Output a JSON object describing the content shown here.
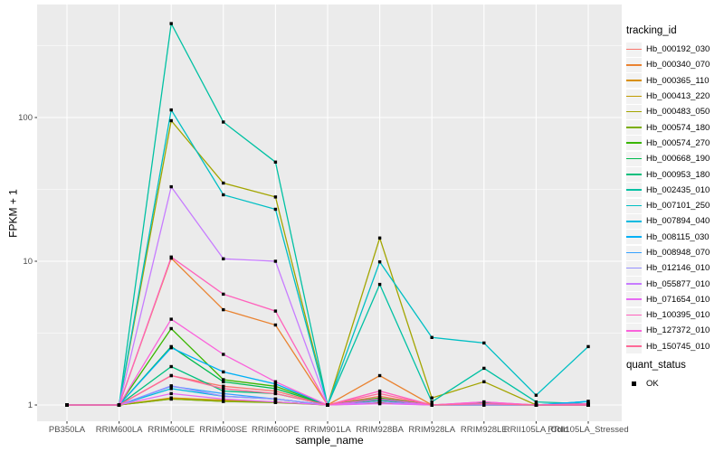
{
  "chart_data": {
    "type": "line",
    "title": "",
    "xlabel": "sample_name",
    "ylabel": "FPKM + 1",
    "y_scale": "log10",
    "y_tick_labels": [
      "1",
      "10",
      "100"
    ],
    "y_tick_values": [
      1,
      10,
      100
    ],
    "y_minor_values": [
      3.162,
      31.62,
      316.2
    ],
    "ylim_log": [
      -0.11,
      2.79
    ],
    "grid": "on",
    "legend_position": "right",
    "panel_bg": "#EBEBEB",
    "grid_color": "#FFFFFF",
    "tick_label_color": "#4D4D4D",
    "point_color": "#000000",
    "point_shape": "black-square",
    "x_categories": [
      "PB350LA",
      "RRIM600LA",
      "RRIM600LE",
      "RRIM600SE",
      "RRIM600PE",
      "RRIM901LA",
      "RRIM928BA",
      "RRIM928LA",
      "RRIM928LE",
      "RRII105LA_Cold",
      "RRII105LA_Stressed"
    ],
    "series": [
      {
        "name": "Hb_000192_030",
        "color": "#F8766D",
        "values": [
          1,
          1,
          1.6,
          1.35,
          1.25,
          1,
          1.15,
          1,
          1.03,
          1,
          1
        ]
      },
      {
        "name": "Hb_000340_070",
        "color": "#EA8331",
        "values": [
          1,
          1,
          10.5,
          4.6,
          3.6,
          1,
          1.6,
          1,
          1.03,
          1,
          1
        ]
      },
      {
        "name": "Hb_000365_110",
        "color": "#D89000",
        "values": [
          1,
          1,
          1.12,
          1.08,
          1.05,
          1,
          1.05,
          1,
          1,
          1,
          1
        ]
      },
      {
        "name": "Hb_000413_220",
        "color": "#C09B00",
        "values": [
          1,
          1,
          1.1,
          1.06,
          1.05,
          1,
          1.03,
          1,
          1.02,
          1,
          1
        ]
      },
      {
        "name": "Hb_000483_050",
        "color": "#A3A500",
        "values": [
          1,
          1,
          95,
          35,
          28,
          1,
          14.5,
          1.12,
          1.45,
          1,
          1
        ]
      },
      {
        "name": "Hb_000574_180",
        "color": "#7CAE00",
        "values": [
          1,
          1,
          1.1,
          1.06,
          1.04,
          1,
          1.05,
          1,
          1,
          1,
          1
        ]
      },
      {
        "name": "Hb_000574_270",
        "color": "#39B600",
        "values": [
          1,
          1,
          3.4,
          1.5,
          1.35,
          1,
          1.12,
          1,
          1.04,
          1,
          1
        ]
      },
      {
        "name": "Hb_000668_190",
        "color": "#00BB4E",
        "values": [
          1,
          1,
          2.55,
          1.45,
          1.3,
          1,
          1.1,
          1,
          1.03,
          1,
          1
        ]
      },
      {
        "name": "Hb_000953_180",
        "color": "#00BF7D",
        "values": [
          1,
          1,
          1.85,
          1.25,
          1.2,
          1,
          1.08,
          1,
          1.02,
          1,
          1
        ]
      },
      {
        "name": "Hb_002435_010",
        "color": "#00C1A3",
        "values": [
          1,
          1,
          450,
          93,
          49,
          1,
          6.9,
          1.05,
          1.8,
          1.05,
          1.02
        ]
      },
      {
        "name": "Hb_007101_250",
        "color": "#00BFC4",
        "values": [
          1,
          1,
          113,
          29,
          23,
          1,
          9.9,
          2.95,
          2.7,
          1.17,
          2.55
        ]
      },
      {
        "name": "Hb_007894_040",
        "color": "#00BAE0",
        "values": [
          1,
          1,
          1.3,
          1.15,
          1.1,
          1,
          1.05,
          1,
          1.02,
          1,
          1.06
        ]
      },
      {
        "name": "Hb_008115_030",
        "color": "#00B0F6",
        "values": [
          1,
          1,
          2.5,
          1.7,
          1.4,
          1,
          1.1,
          1,
          1.02,
          1,
          1.06
        ]
      },
      {
        "name": "Hb_008948_070",
        "color": "#35A2FF",
        "values": [
          1,
          1,
          1.35,
          1.2,
          1.1,
          1,
          1.05,
          1,
          1,
          1,
          1.02
        ]
      },
      {
        "name": "Hb_012146_010",
        "color": "#9590FF",
        "values": [
          1,
          1,
          1.36,
          1.15,
          1.1,
          1,
          1.05,
          1,
          1,
          1,
          1
        ]
      },
      {
        "name": "Hb_055877_010",
        "color": "#C77CFF",
        "values": [
          1,
          1,
          33,
          10.4,
          10,
          1,
          1.05,
          1,
          1.02,
          1,
          1
        ]
      },
      {
        "name": "Hb_071654_010",
        "color": "#E76BF3",
        "values": [
          1,
          1,
          1.2,
          1.1,
          1.05,
          1,
          1.02,
          1,
          1.02,
          1,
          1
        ]
      },
      {
        "name": "Hb_100395_010",
        "color": "#FF62BC",
        "values": [
          1,
          1,
          10.7,
          5.9,
          4.5,
          1,
          1.25,
          1,
          1.05,
          1,
          1.02
        ]
      },
      {
        "name": "Hb_127372_010",
        "color": "#FA62DB",
        "values": [
          1,
          1,
          3.95,
          2.25,
          1.45,
          1,
          1.1,
          1,
          1.05,
          1,
          1
        ]
      },
      {
        "name": "Hb_150745_010",
        "color": "#FF6A98",
        "values": [
          1,
          1,
          1.6,
          1.3,
          1.2,
          1,
          1.2,
          1,
          1.02,
          1,
          1
        ]
      }
    ],
    "legend_color_title": "tracking_id",
    "legend_shape_title": "quant_status",
    "legend_shape_items": [
      {
        "label": "OK"
      }
    ]
  }
}
